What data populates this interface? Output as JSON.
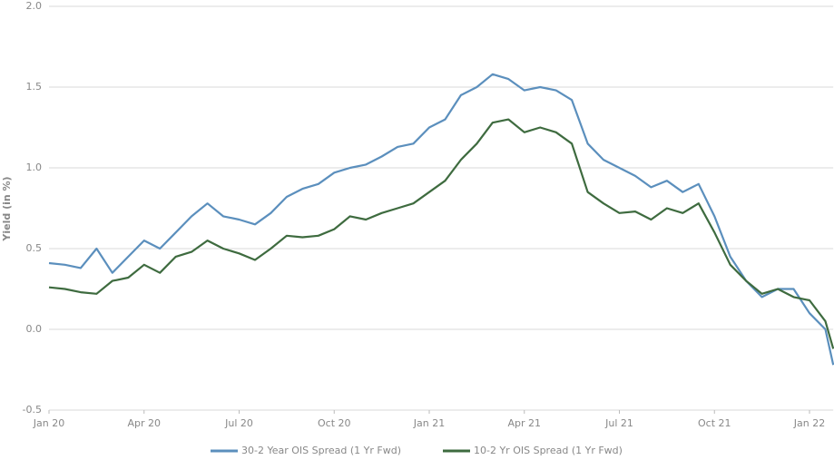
{
  "chart_data": {
    "type": "line",
    "y_label": "Yield (in %)",
    "x": [
      0,
      0.5,
      1,
      1.5,
      2,
      2.5,
      3,
      3.5,
      4,
      4.5,
      5,
      5.5,
      6,
      6.5,
      7,
      7.5,
      8,
      8.5,
      9,
      9.5,
      10,
      10.5,
      11,
      11.5,
      12,
      12.5,
      13,
      13.5,
      14,
      14.5,
      15,
      15.5,
      16,
      16.5,
      17,
      17.5,
      18,
      18.5,
      19,
      19.5,
      20,
      20.5,
      21,
      21.5,
      22,
      22.5,
      23,
      23.5,
      24,
      24.5,
      24.75
    ],
    "series": [
      {
        "name": "30-2 Year OIS Spread (1 Yr Fwd)",
        "color": "#5b8fbd",
        "values": [
          0.41,
          0.4,
          0.38,
          0.5,
          0.35,
          0.45,
          0.55,
          0.5,
          0.6,
          0.7,
          0.78,
          0.7,
          0.68,
          0.65,
          0.72,
          0.82,
          0.87,
          0.9,
          0.97,
          1.0,
          1.02,
          1.07,
          1.13,
          1.15,
          1.25,
          1.3,
          1.45,
          1.5,
          1.58,
          1.55,
          1.48,
          1.5,
          1.48,
          1.42,
          1.15,
          1.05,
          1.0,
          0.95,
          0.88,
          0.92,
          0.85,
          0.9,
          0.7,
          0.45,
          0.3,
          0.2,
          0.25,
          0.25,
          0.1,
          0.0,
          -0.22
        ]
      },
      {
        "name": "10-2 Yr OIS Spread (1 Yr Fwd)",
        "color": "#3e6b3f",
        "values": [
          0.26,
          0.25,
          0.23,
          0.22,
          0.3,
          0.32,
          0.4,
          0.35,
          0.45,
          0.48,
          0.55,
          0.5,
          0.47,
          0.43,
          0.5,
          0.58,
          0.57,
          0.58,
          0.62,
          0.7,
          0.68,
          0.72,
          0.75,
          0.78,
          0.85,
          0.92,
          1.05,
          1.15,
          1.28,
          1.3,
          1.22,
          1.25,
          1.22,
          1.15,
          0.85,
          0.78,
          0.72,
          0.73,
          0.68,
          0.75,
          0.72,
          0.78,
          0.6,
          0.4,
          0.3,
          0.22,
          0.25,
          0.2,
          0.18,
          0.05,
          -0.12
        ]
      }
    ],
    "xlim": [
      0,
      24.75
    ],
    "xticks": [
      {
        "value": 0,
        "label": "Jan 20"
      },
      {
        "value": 3,
        "label": "Apr 20"
      },
      {
        "value": 6,
        "label": "Jul 20"
      },
      {
        "value": 9,
        "label": "Oct 20"
      },
      {
        "value": 12,
        "label": "Jan 21"
      },
      {
        "value": 15,
        "label": "Apr 21"
      },
      {
        "value": 18,
        "label": "Jul 21"
      },
      {
        "value": 21,
        "label": "Oct 21"
      },
      {
        "value": 24,
        "label": "Jan 22"
      }
    ],
    "ylim": [
      -0.5,
      2.0
    ],
    "yticks": [
      -0.5,
      {
        "value": 0,
        "label": "0.0"
      },
      0.5,
      {
        "value": 1,
        "label": "1.0"
      },
      1.5,
      {
        "value": 2,
        "label": "2.0"
      }
    ],
    "grid": true
  }
}
